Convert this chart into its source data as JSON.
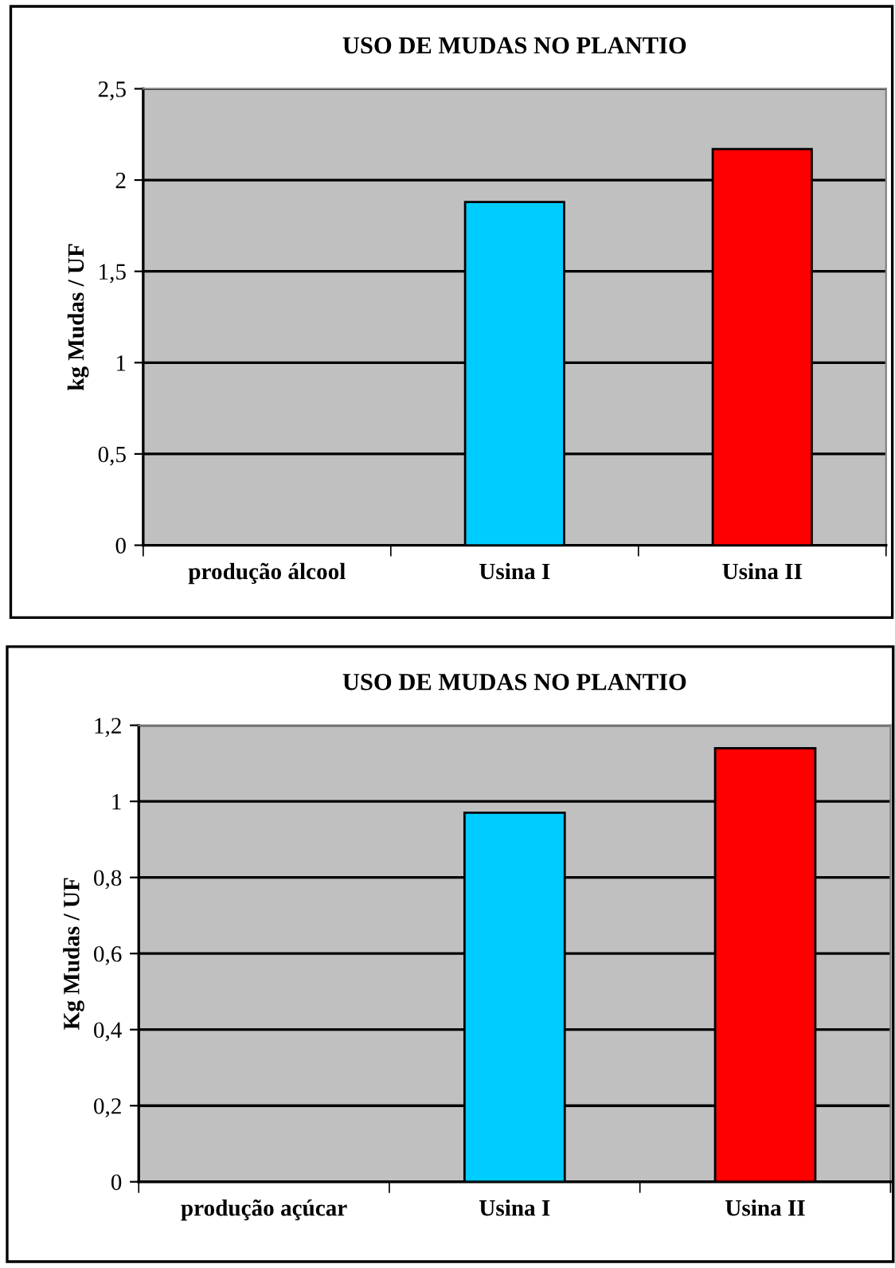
{
  "chart_data": [
    {
      "type": "bar",
      "title": "USO DE MUDAS NO PLANTIO",
      "ylabel": "kg Mudas / UF",
      "categories": [
        "produção álcool",
        "Usina I",
        "Usina II"
      ],
      "values": [
        null,
        1.88,
        2.17
      ],
      "colors": [
        "#00ccff",
        "#00ccff",
        "#ff0000"
      ],
      "ylim": [
        0,
        2.5
      ],
      "yticks": [
        0,
        {
          "value": 0.5,
          "label": "0,5"
        },
        1,
        {
          "value": 1.5,
          "label": "1,5"
        },
        2,
        {
          "value": 2.5,
          "label": "2,5"
        }
      ],
      "grid": "y"
    },
    {
      "type": "bar",
      "title": "USO DE MUDAS NO PLANTIO",
      "ylabel": "Kg Mudas / UF",
      "categories": [
        "produção açúcar",
        "Usina I",
        "Usina II"
      ],
      "values": [
        null,
        0.97,
        1.14
      ],
      "colors": [
        "#00ccff",
        "#00ccff",
        "#ff0000"
      ],
      "ylim": [
        0,
        1.2
      ],
      "yticks": [
        0,
        {
          "value": 0.2,
          "label": "0,2"
        },
        {
          "value": 0.4,
          "label": "0,4"
        },
        {
          "value": 0.6,
          "label": "0,6"
        },
        {
          "value": 0.8,
          "label": "0,8"
        },
        1,
        {
          "value": 1.2,
          "label": "1,2"
        }
      ],
      "grid": "y"
    }
  ]
}
